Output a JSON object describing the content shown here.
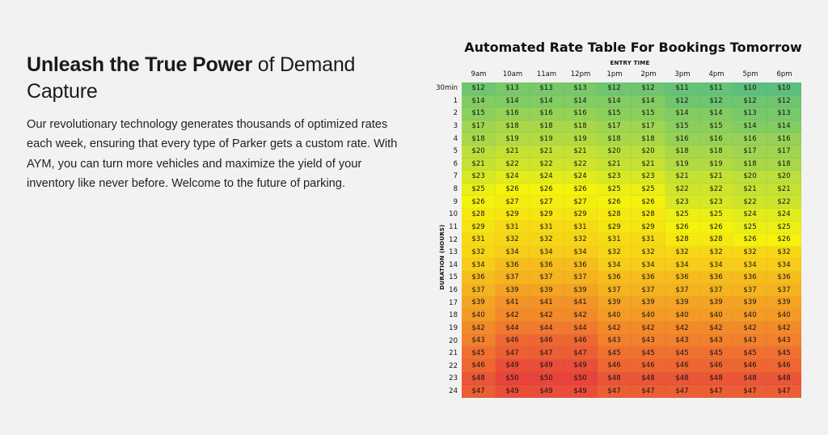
{
  "left": {
    "headline_bold": "Unleash the True Power",
    "headline_rest": " of Demand Capture",
    "body": "Our revolutionary technology generates thousands of optimized rates each week, ensuring that every type of Parker gets a custom rate. With AYM, you can turn more vehicles and maximize the yield of your inventory like never before. Welcome to the future of parking."
  },
  "chart_data": {
    "type": "heatmap",
    "title": "Automated Rate Table For Bookings Tomorrow",
    "xlabel": "ENTRY TIME",
    "ylabel": "DURATION (HOURS)",
    "x": [
      "9am",
      "10am",
      "11am",
      "12pm",
      "1pm",
      "2pm",
      "3pm",
      "4pm",
      "5pm",
      "6pm"
    ],
    "y": [
      "30min",
      "1",
      "2",
      "3",
      "4",
      "5",
      "6",
      "7",
      "8",
      "9",
      "10",
      "11",
      "12",
      "13",
      "14",
      "15",
      "16",
      "17",
      "18",
      "19",
      "20",
      "21",
      "22",
      "23",
      "24"
    ],
    "unit_prefix": "$",
    "color_scale": [
      "#5cbf7d",
      "#a8d84a",
      "#f5f20e",
      "#f7cc1a",
      "#f28a2a",
      "#e9443c"
    ],
    "values": [
      [
        12,
        13,
        13,
        13,
        12,
        12,
        11,
        11,
        10,
        10
      ],
      [
        14,
        14,
        14,
        14,
        14,
        14,
        12,
        12,
        12,
        12
      ],
      [
        15,
        16,
        16,
        16,
        15,
        15,
        14,
        14,
        13,
        13
      ],
      [
        17,
        18,
        18,
        18,
        17,
        17,
        15,
        15,
        14,
        14
      ],
      [
        18,
        19,
        19,
        19,
        18,
        18,
        16,
        16,
        16,
        16
      ],
      [
        20,
        21,
        21,
        21,
        20,
        20,
        18,
        18,
        17,
        17
      ],
      [
        21,
        22,
        22,
        22,
        21,
        21,
        19,
        19,
        18,
        18
      ],
      [
        23,
        24,
        24,
        24,
        23,
        23,
        21,
        21,
        20,
        20
      ],
      [
        25,
        26,
        26,
        26,
        25,
        25,
        22,
        22,
        21,
        21
      ],
      [
        26,
        27,
        27,
        27,
        26,
        26,
        23,
        23,
        22,
        22
      ],
      [
        28,
        29,
        29,
        29,
        28,
        28,
        25,
        25,
        24,
        24
      ],
      [
        29,
        31,
        31,
        31,
        29,
        29,
        26,
        26,
        25,
        25
      ],
      [
        31,
        32,
        32,
        32,
        31,
        31,
        28,
        28,
        26,
        26
      ],
      [
        32,
        34,
        34,
        34,
        32,
        32,
        32,
        32,
        32,
        32
      ],
      [
        34,
        36,
        36,
        36,
        34,
        34,
        34,
        34,
        34,
        34
      ],
      [
        36,
        37,
        37,
        37,
        36,
        36,
        36,
        36,
        36,
        36
      ],
      [
        37,
        39,
        39,
        39,
        37,
        37,
        37,
        37,
        37,
        37
      ],
      [
        39,
        41,
        41,
        41,
        39,
        39,
        39,
        39,
        39,
        39
      ],
      [
        40,
        42,
        42,
        42,
        40,
        40,
        40,
        40,
        40,
        40
      ],
      [
        42,
        44,
        44,
        44,
        42,
        42,
        42,
        42,
        42,
        42
      ],
      [
        43,
        46,
        46,
        46,
        43,
        43,
        43,
        43,
        43,
        43
      ],
      [
        45,
        47,
        47,
        47,
        45,
        45,
        45,
        45,
        45,
        45
      ],
      [
        46,
        49,
        49,
        49,
        46,
        46,
        46,
        46,
        46,
        46
      ],
      [
        48,
        50,
        50,
        50,
        48,
        48,
        48,
        48,
        48,
        48
      ],
      [
        47,
        49,
        49,
        49,
        47,
        47,
        47,
        47,
        47,
        47
      ]
    ]
  }
}
